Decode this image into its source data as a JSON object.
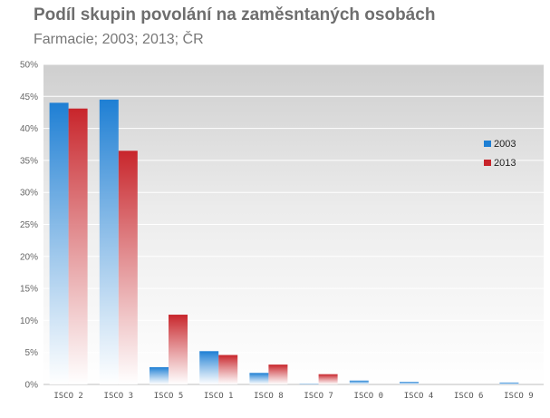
{
  "chart_data": {
    "type": "bar",
    "title": "Podíl skupin povolání na zaměsntaných osobách",
    "subtitle": "Farmacie; 2003; 2013; ČR",
    "categories": [
      "ISCO 2",
      "ISCO 3",
      "ISCO 5",
      "ISCO 1",
      "ISCO 8",
      "ISCO 7",
      "ISCO 0",
      "ISCO 4",
      "ISCO 6",
      "ISCO 9"
    ],
    "series": [
      {
        "name": "2003",
        "color": "#1e7fd4",
        "values": [
          44.0,
          44.5,
          2.7,
          5.2,
          1.8,
          0.1,
          0.6,
          0.4,
          0.0,
          0.3
        ]
      },
      {
        "name": "2013",
        "color": "#c8252b",
        "values": [
          43.1,
          36.5,
          10.9,
          4.6,
          3.1,
          1.6,
          0.0,
          0.0,
          0.0,
          0.0
        ]
      }
    ],
    "yticks": [
      "0%",
      "5%",
      "10%",
      "15%",
      "20%",
      "25%",
      "30%",
      "35%",
      "40%",
      "45%",
      "50%"
    ],
    "ylim": [
      0,
      50
    ],
    "legend_position": "right",
    "grid": true
  }
}
